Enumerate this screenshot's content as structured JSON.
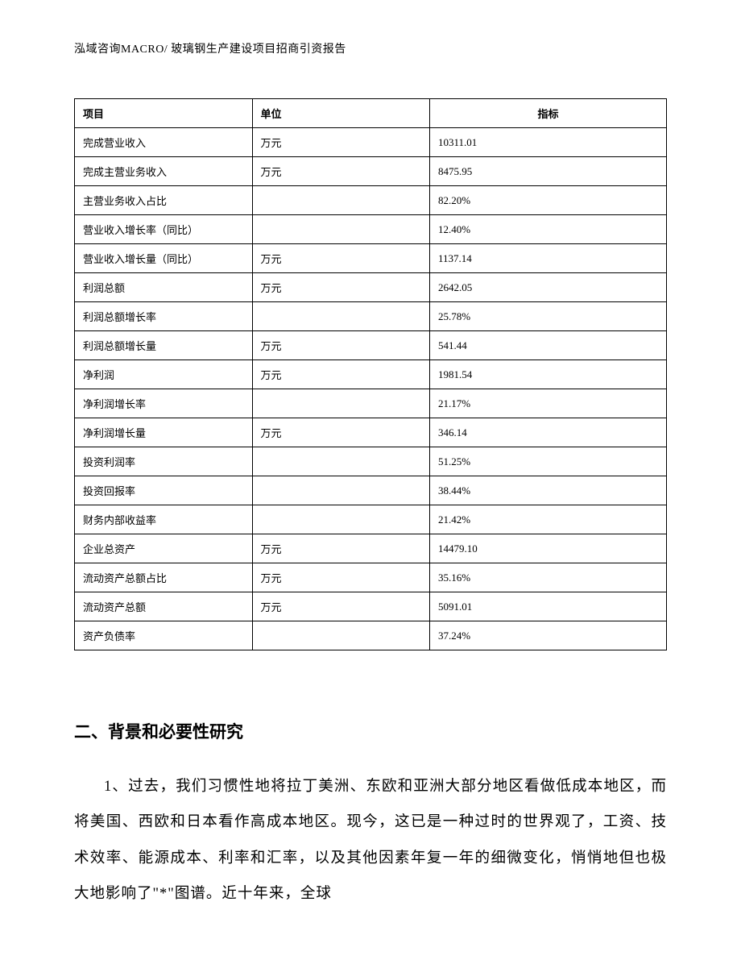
{
  "header": {
    "text": "泓域咨询MACRO/ 玻璃钢生产建设项目招商引资报告"
  },
  "table": {
    "columns": [
      "项目",
      "单位",
      "指标"
    ],
    "rows": [
      [
        "完成营业收入",
        "万元",
        "10311.01"
      ],
      [
        "完成主营业务收入",
        "万元",
        "8475.95"
      ],
      [
        "主营业务收入占比",
        "",
        "82.20%"
      ],
      [
        "营业收入增长率（同比）",
        "",
        "12.40%"
      ],
      [
        "营业收入增长量（同比）",
        "万元",
        "1137.14"
      ],
      [
        "利润总额",
        "万元",
        "2642.05"
      ],
      [
        "利润总额增长率",
        "",
        "25.78%"
      ],
      [
        "利润总额增长量",
        "万元",
        "541.44"
      ],
      [
        "净利润",
        "万元",
        "1981.54"
      ],
      [
        "净利润增长率",
        "",
        "21.17%"
      ],
      [
        "净利润增长量",
        "万元",
        "346.14"
      ],
      [
        "投资利润率",
        "",
        "51.25%"
      ],
      [
        "投资回报率",
        "",
        "38.44%"
      ],
      [
        "财务内部收益率",
        "",
        "21.42%"
      ],
      [
        "企业总资产",
        "万元",
        "14479.10"
      ],
      [
        "流动资产总额占比",
        "万元",
        "35.16%"
      ],
      [
        "流动资产总额",
        "万元",
        "5091.01"
      ],
      [
        "资产负债率",
        "",
        "37.24%"
      ]
    ]
  },
  "section": {
    "heading": "二、背景和必要性研究",
    "paragraph": "1、过去，我们习惯性地将拉丁美洲、东欧和亚洲大部分地区看做低成本地区，而将美国、西欧和日本看作高成本地区。现今，这已是一种过时的世界观了，工资、技术效率、能源成本、利率和汇率，以及其他因素年复一年的细微变化，悄悄地但也极大地影响了\"*\"图谱。近十年来，全球"
  },
  "styles": {
    "background_color": "#ffffff",
    "text_color": "#000000",
    "border_color": "#000000",
    "header_fontsize": 14,
    "table_fontsize": 13,
    "heading_fontsize": 21,
    "body_fontsize": 18.5,
    "body_line_height": 2.4
  }
}
